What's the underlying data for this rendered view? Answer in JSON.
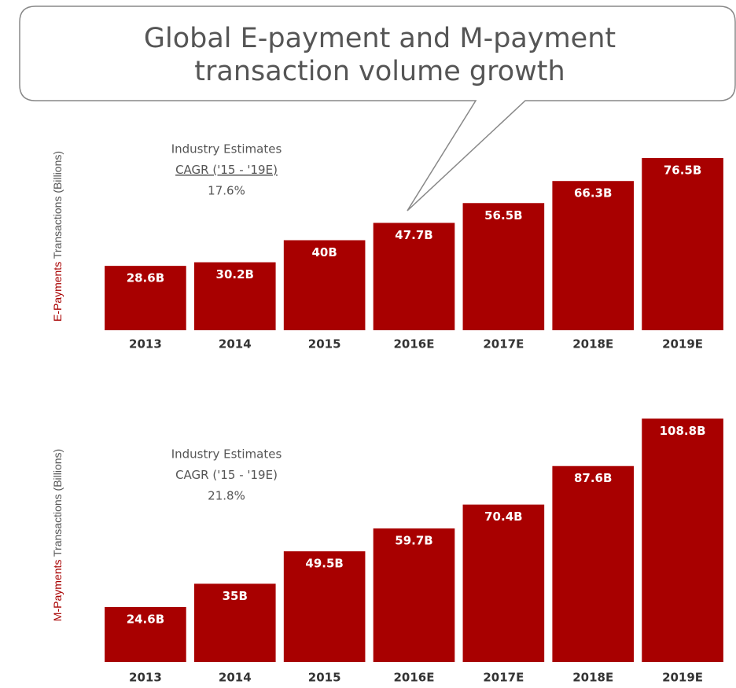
{
  "title": "Global E-payment and M-payment transaction volume growth",
  "chart_data": [
    {
      "type": "bar",
      "ylabel_highlight": "E-Payments",
      "ylabel": "Transactions (Billions)",
      "annotation": [
        "Industry Estimates",
        "CAGR ('15 - '19E)",
        "17.6%"
      ],
      "categories": [
        "2013",
        "2014",
        "2015",
        "2016E",
        "2017E",
        "2018E",
        "2019E"
      ],
      "values": [
        28.6,
        30.2,
        40,
        47.7,
        56.5,
        66.3,
        76.5
      ],
      "value_labels": [
        "28.6B",
        "30.2B",
        "40B",
        "47.7B",
        "56.5B",
        "66.3B",
        "76.5B"
      ],
      "color": "#a80000",
      "ylim": [
        0,
        80
      ]
    },
    {
      "type": "bar",
      "ylabel_highlight": "M-Payments",
      "ylabel": "Transactions (Billions)",
      "annotation": [
        "Industry Estimates",
        "CAGR ('15 - '19E)",
        "21.8%"
      ],
      "categories": [
        "2013",
        "2014",
        "2015",
        "2016E",
        "2017E",
        "2018E",
        "2019E"
      ],
      "values": [
        24.6,
        35,
        49.5,
        59.7,
        70.4,
        87.6,
        108.8
      ],
      "value_labels": [
        "24.6B",
        "35B",
        "49.5B",
        "59.7B",
        "70.4B",
        "87.6B",
        "108.8B"
      ],
      "color": "#a80000",
      "ylim": [
        0,
        110
      ]
    }
  ]
}
